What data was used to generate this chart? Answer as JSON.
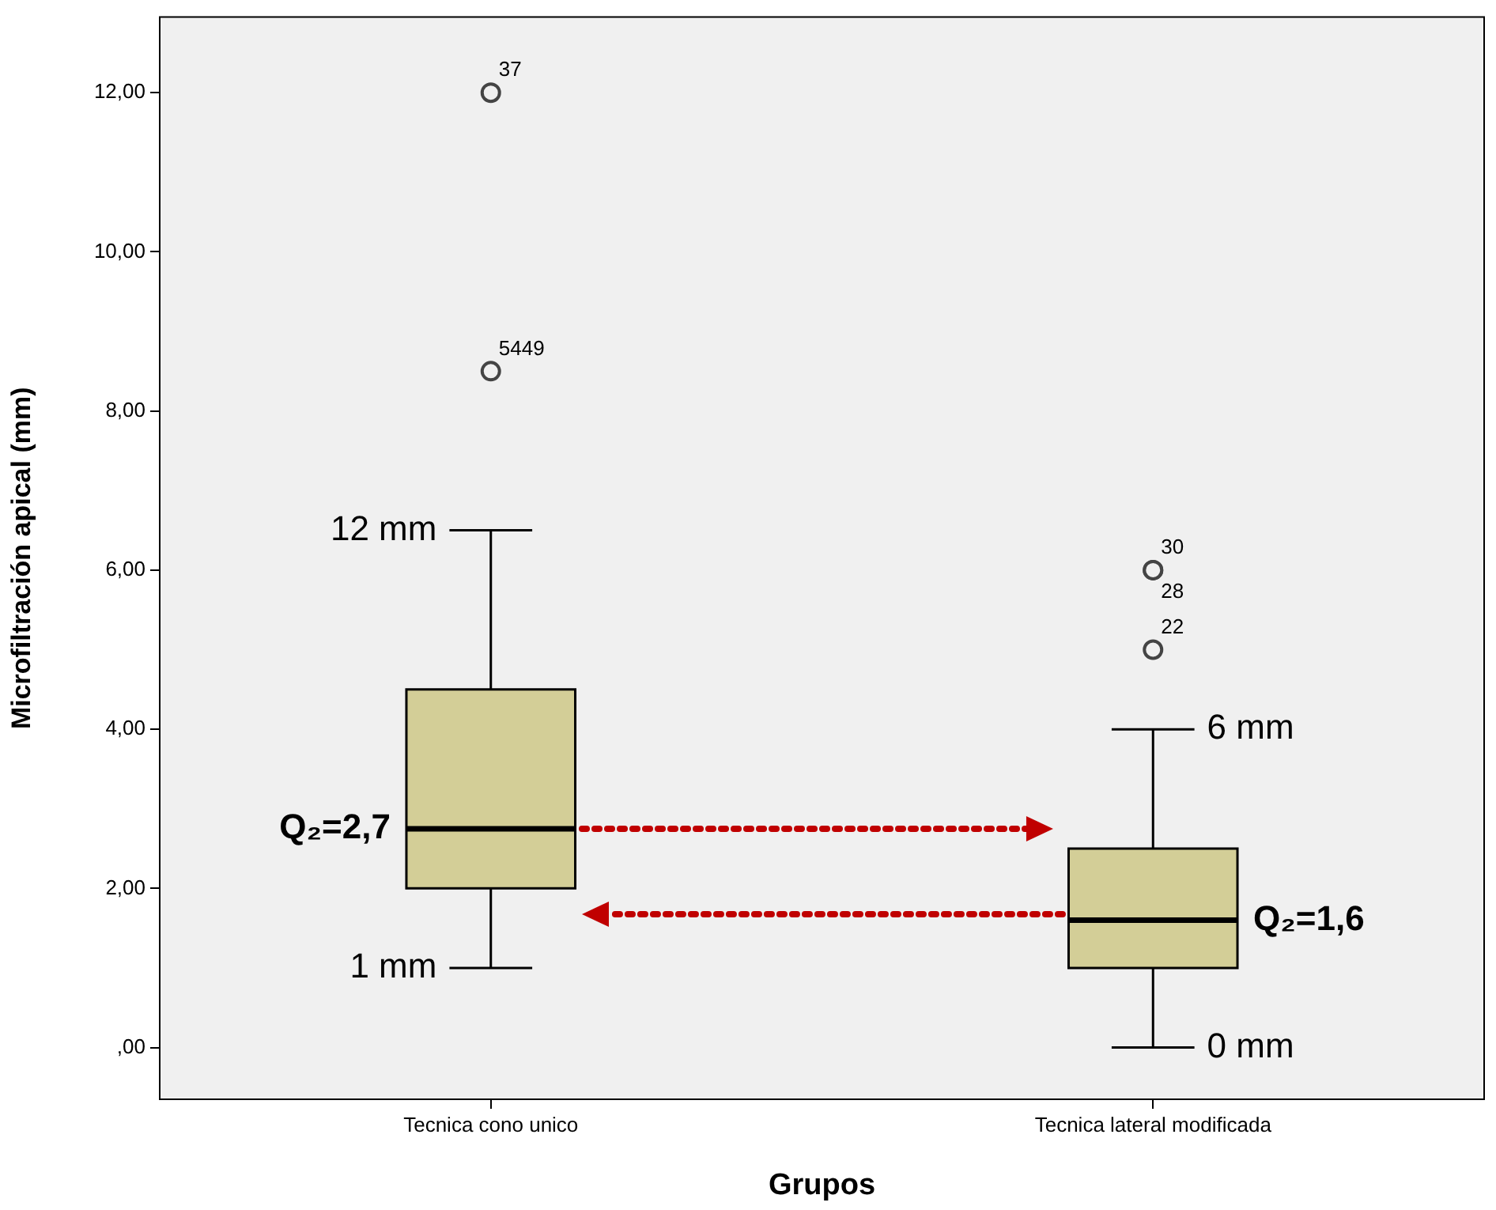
{
  "chart_data": {
    "type": "box",
    "xlabel": "Grupos",
    "ylabel": "Microfiltración apical (mm)",
    "categories": [
      "Tecnica cono unico",
      "Tecnica lateral modificada"
    ],
    "color": "#d3ce97",
    "boxes": [
      {
        "low": 1,
        "q1": 2,
        "median": 2.75,
        "q3": 4.5,
        "high": 6.5,
        "outliers": [
          12,
          8.5
        ]
      },
      {
        "low": 0,
        "q1": 1,
        "median": 1.6,
        "q3": 2.5,
        "high": 4,
        "outliers": [
          6,
          6,
          5
        ]
      }
    ],
    "ylim": [
      -0.65,
      12.95
    ],
    "yticks": [
      {
        "value": 0,
        "label": ",00"
      },
      {
        "value": 2,
        "label": "2,00"
      },
      {
        "value": 4,
        "label": "4,00"
      },
      {
        "value": 6,
        "label": "6,00"
      },
      {
        "value": 8,
        "label": "8,00"
      },
      {
        "value": 10,
        "label": "10,00"
      },
      {
        "value": 12,
        "label": "12,00"
      }
    ],
    "legend": false,
    "annotations": [
      "37",
      "5449",
      "30",
      "28",
      "22",
      {
        "text": "12 mm",
        "x": "Tecnica cono unico",
        "y": 6.5
      },
      {
        "text": "Q₂=2,7",
        "x": "Tecnica cono unico",
        "y": 2.75
      },
      {
        "text": "1 mm",
        "x": "Tecnica cono unico",
        "y": 1
      },
      {
        "text": "6 mm",
        "x": "Tecnica lateral modificada",
        "y": 4
      },
      {
        "text": "Q₂=1,6",
        "x": "Tecnica lateral modificada",
        "y": 1.6
      },
      {
        "text": "0 mm",
        "x": "Tecnica lateral modificada",
        "y": 0
      }
    ]
  }
}
